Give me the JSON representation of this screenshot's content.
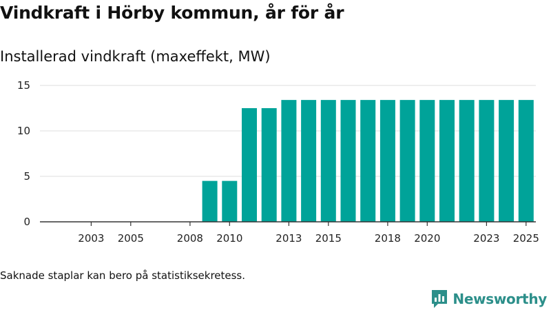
{
  "title": "Vindkraft i Hörby kommun, år för år",
  "subtitle": "Installerad vindkraft (maxeffekt, MW)",
  "footnote": "Saknade staplar kan bero på statistiksekretess.",
  "brand": "Newsworthy",
  "colors": {
    "bar": "#00a399",
    "brand": "#2c8f8a"
  },
  "chart_data": {
    "type": "bar",
    "title": "Installerad vindkraft (maxeffekt, MW)",
    "xlabel": "",
    "ylabel": "",
    "ylim": [
      0,
      15
    ],
    "yticks": [
      0,
      5,
      10,
      15
    ],
    "xticks": [
      2003,
      2005,
      2008,
      2010,
      2013,
      2015,
      2018,
      2020,
      2023,
      2025
    ],
    "x_range": [
      2001,
      2026
    ],
    "categories": [
      2009,
      2010,
      2011,
      2012,
      2013,
      2014,
      2015,
      2016,
      2017,
      2018,
      2019,
      2020,
      2021,
      2022,
      2023,
      2024,
      2025
    ],
    "values": [
      4.5,
      4.5,
      12.5,
      12.5,
      13.4,
      13.4,
      13.4,
      13.4,
      13.4,
      13.4,
      13.4,
      13.4,
      13.4,
      13.4,
      13.4,
      13.4,
      13.4
    ]
  }
}
